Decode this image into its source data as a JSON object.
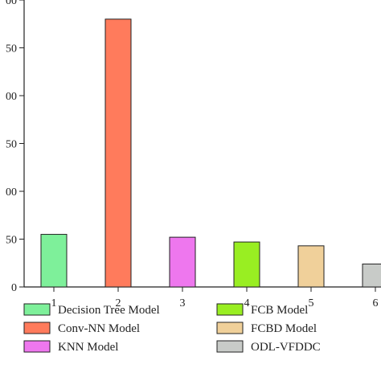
{
  "chart_data": {
    "type": "bar",
    "title": "",
    "xlabel": "",
    "ylabel": "",
    "categories": [
      "1",
      "2",
      "3",
      "4",
      "5",
      "6"
    ],
    "ytick_labels": [
      "0",
      "50",
      "00",
      "50",
      "00",
      "50",
      "00"
    ],
    "ylim": [
      0,
      300
    ],
    "legend_position": "bottom",
    "series": [
      {
        "name": "Decision Tree Model",
        "x": "1",
        "value": 55,
        "color": "#7ef09a"
      },
      {
        "name": "Conv-NN Model",
        "x": "2",
        "value": 280,
        "color": "#ff7b5c"
      },
      {
        "name": "KNN Model",
        "x": "3",
        "value": 52,
        "color": "#ee77ee"
      },
      {
        "name": "FCB Model",
        "x": "4",
        "value": 47,
        "color": "#99ee22"
      },
      {
        "name": "FCBD Model",
        "x": "5",
        "value": 43,
        "color": "#f0d09a"
      },
      {
        "name": "ODL-VFDDC",
        "x": "6",
        "value": 24,
        "color": "#c8cbc8"
      }
    ]
  }
}
